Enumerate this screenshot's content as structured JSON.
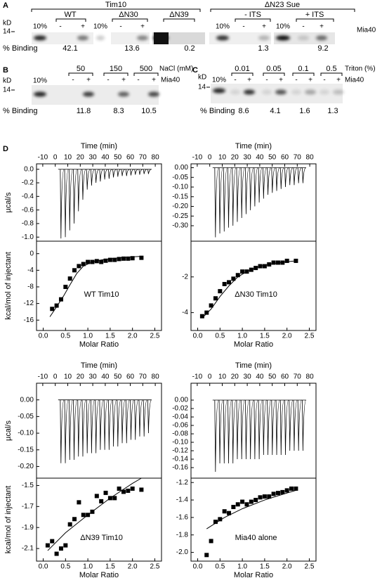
{
  "gels": {
    "a": {
      "label": "A",
      "group1": "Tim10",
      "group2": "ΔN23 Sue",
      "lanes": [
        "WT",
        "ΔN30",
        "ΔN39",
        "- ITS",
        "+ ITS"
      ],
      "kd": "kD",
      "marker": "14",
      "load": "10%",
      "minus": "-",
      "plus": "+",
      "protein": "Mia40",
      "binding_label": "% Binding",
      "binding": [
        42.1,
        13.6,
        0.2,
        1.3,
        9.2
      ]
    },
    "b": {
      "label": "B",
      "conditions": [
        50,
        150,
        500
      ],
      "condition_label": "NaCl (mM)",
      "kd": "kD",
      "marker": "14",
      "load": "10%",
      "minus": "-",
      "plus": "+",
      "protein": "Mia40",
      "binding_label": "% Binding",
      "binding": [
        11.8,
        8.3,
        10.5
      ]
    },
    "c": {
      "label": "C",
      "conditions": [
        0.01,
        0.05,
        0.1,
        0.5
      ],
      "condition_label": "Triton (%)",
      "kd": "kD",
      "marker": "14",
      "load": "10%",
      "minus": "-",
      "plus": "+",
      "protein": "Mia40",
      "binding_label": "% Binding",
      "binding": [
        8.6,
        4.1,
        1.6,
        1.3
      ]
    }
  },
  "panel_d_label": "D",
  "chart_data": [
    {
      "type": "itc",
      "color": "#000000",
      "annotation": "WT Tim10",
      "thermogram": {
        "title": "Time (min)",
        "ylabel": "µcal/s",
        "xlim": [
          -15,
          85
        ],
        "xticks": [
          -10,
          0,
          10,
          20,
          30,
          40,
          50,
          60,
          70,
          80
        ],
        "ylim": [
          -1.06,
          0.08
        ],
        "yticks": [
          {
            "value": 0,
            "label": "0.0"
          },
          -0.2,
          -0.4,
          -0.6,
          -0.8,
          {
            "value": -1,
            "label": "-1.0"
          }
        ],
        "x": [
          4,
          7.5,
          11,
          14.5,
          18,
          21.5,
          25,
          28.5,
          32,
          35.5,
          39,
          42.5,
          46,
          49.5,
          53,
          56.5,
          60,
          63.5,
          67,
          70.5,
          74
        ],
        "values": [
          -1.02,
          -1.0,
          -0.9,
          -0.8,
          -0.62,
          -0.45,
          -0.3,
          -0.24,
          -0.2,
          -0.18,
          -0.15,
          -0.14,
          -0.12,
          -0.11,
          -0.1,
          -0.1,
          -0.09,
          -0.08,
          -0.08,
          -0.07,
          -0.07
        ]
      },
      "isotherm": {
        "xlabel": "Molar Ratio",
        "ylabel": "kcal/mol of injectant",
        "xlim": [
          -0.15,
          2.65
        ],
        "xticks": [
          {
            "value": 0,
            "label": "0.0"
          },
          0.5,
          {
            "value": 1,
            "label": "1.0"
          },
          1.5,
          {
            "value": 2,
            "label": "2.0"
          },
          2.5
        ],
        "ylim": [
          -18.5,
          3
        ],
        "yticks": [
          0,
          -4,
          -8,
          -12,
          -16
        ],
        "x": [
          0.2,
          0.3,
          0.4,
          0.5,
          0.6,
          0.7,
          0.8,
          0.9,
          1.0,
          1.1,
          1.2,
          1.3,
          1.4,
          1.5,
          1.6,
          1.7,
          1.8,
          1.9,
          2.0,
          2.2
        ],
        "values": [
          -13.3,
          -12.5,
          -11,
          -8,
          -6,
          -4,
          -3,
          -2.5,
          -2,
          -2,
          -1.8,
          -2,
          -1.7,
          -1.5,
          -1.5,
          -1.3,
          -1.2,
          -1.2,
          -1.1,
          -1
        ],
        "fit": {
          "x": [
            0.15,
            0.3,
            0.45,
            0.6,
            0.75,
            0.9,
            1.1,
            1.3,
            1.6,
            1.9,
            2.2
          ],
          "values": [
            -15.2,
            -12.8,
            -10.3,
            -7.5,
            -4.8,
            -3.0,
            -2.0,
            -1.5,
            -1.1,
            -0.85,
            -0.65
          ]
        }
      }
    },
    {
      "type": "itc",
      "color": "#000000",
      "annotation": "ΔN30 Tim10",
      "thermogram": {
        "title": "Time (min)",
        "xlim": [
          -15,
          85
        ],
        "xticks": [
          -10,
          0,
          10,
          20,
          30,
          40,
          50,
          60,
          70,
          80
        ],
        "ylim": [
          -0.38,
          0.02
        ],
        "yticks": [
          {
            "value": 0,
            "label": "0.00"
          },
          -0.05,
          {
            "value": -0.1,
            "label": "-0.10"
          },
          -0.15,
          {
            "value": -0.2,
            "label": "-0.20"
          },
          -0.25,
          {
            "value": -0.3,
            "label": "-0.30"
          }
        ],
        "x": [
          4,
          7.5,
          11,
          14.5,
          18,
          21.5,
          25,
          28.5,
          32,
          35.5,
          39,
          42.5,
          46,
          49.5,
          53,
          56.5,
          60,
          63.5,
          67,
          70.5,
          74
        ],
        "values": [
          -0.36,
          -0.34,
          -0.33,
          -0.31,
          -0.3,
          -0.28,
          -0.26,
          -0.24,
          -0.22,
          -0.2,
          -0.18,
          -0.16,
          -0.14,
          -0.13,
          -0.12,
          -0.11,
          -0.1,
          -0.09,
          -0.09,
          -0.08,
          -0.08
        ]
      },
      "isotherm": {
        "xlabel": "Molar Ratio",
        "xlim": [
          -0.15,
          2.65
        ],
        "xticks": [
          {
            "value": 0,
            "label": "0.0"
          },
          0.5,
          {
            "value": 1,
            "label": "1.0"
          },
          1.5,
          {
            "value": 2,
            "label": "2.0"
          },
          2.5
        ],
        "ylim": [
          -5,
          0
        ],
        "yticks": [
          -2,
          -4
        ],
        "x": [
          0.1,
          0.2,
          0.3,
          0.4,
          0.5,
          0.6,
          0.7,
          0.8,
          0.9,
          1.0,
          1.1,
          1.2,
          1.3,
          1.4,
          1.5,
          1.6,
          1.7,
          1.8,
          1.9,
          2.0,
          2.2
        ],
        "values": [
          -4.2,
          -4.0,
          -3.6,
          -3.2,
          -2.8,
          -2.4,
          -2.3,
          -2.1,
          -1.9,
          -1.7,
          -1.7,
          -1.6,
          -1.5,
          -1.4,
          -1.4,
          -1.3,
          -1.2,
          -1.2,
          -1.2,
          -1.1,
          -1.1
        ],
        "fit": {
          "x": [
            0.1,
            0.3,
            0.5,
            0.7,
            0.9,
            1.1,
            1.4,
            1.7,
            2.0,
            2.2
          ],
          "values": [
            -4.3,
            -3.8,
            -3.1,
            -2.5,
            -2.0,
            -1.7,
            -1.4,
            -1.25,
            -1.15,
            -1.1
          ]
        }
      }
    },
    {
      "type": "itc",
      "color": "#000000",
      "annotation": "ΔN39 Tim10",
      "thermogram": {
        "title": "Time (min)",
        "ylabel": "µcal/s",
        "xlim": [
          -15,
          85
        ],
        "xticks": [
          -10,
          0,
          10,
          20,
          30,
          40,
          50,
          60,
          70,
          80
        ],
        "ylim": [
          -0.235,
          0.05
        ],
        "yticks": [
          {
            "value": 0,
            "label": "0.00"
          },
          -0.05,
          {
            "value": -0.1,
            "label": "-0.10"
          },
          -0.15,
          {
            "value": -0.2,
            "label": "-0.20"
          }
        ],
        "x": [
          4,
          7.5,
          11,
          14.5,
          18,
          21.5,
          25,
          28.5,
          32,
          35.5,
          39,
          42.5,
          46,
          49.5,
          53,
          56.5,
          60,
          63.5,
          67,
          70.5,
          74
        ],
        "values": [
          -0.19,
          -0.19,
          -0.18,
          -0.18,
          -0.17,
          -0.17,
          -0.16,
          -0.16,
          -0.16,
          -0.15,
          -0.15,
          -0.15,
          -0.14,
          -0.14,
          -0.13,
          -0.13,
          -0.12,
          -0.12,
          -0.11,
          -0.11,
          -0.1
        ]
      },
      "isotherm": {
        "xlabel": "Molar Ratio",
        "ylabel": "kcal/mol of injectant",
        "xlim": [
          -0.15,
          2.65
        ],
        "xticks": [
          {
            "value": 0,
            "label": "0.0"
          },
          0.5,
          {
            "value": 1,
            "label": "1.0"
          },
          1.5,
          {
            "value": 2,
            "label": "2.0"
          },
          2.5
        ],
        "ylim": [
          -2.22,
          -1.43
        ],
        "yticks": [
          -1.5,
          -1.7,
          -1.9,
          -2.1
        ],
        "x": [
          0.1,
          0.2,
          0.3,
          0.4,
          0.5,
          0.6,
          0.7,
          0.8,
          0.9,
          1.0,
          1.1,
          1.2,
          1.3,
          1.4,
          1.5,
          1.6,
          1.7,
          1.8,
          1.9,
          2.0,
          2.2
        ],
        "values": [
          -2.07,
          -2.03,
          -2.15,
          -2.1,
          -2.07,
          -1.87,
          -1.82,
          -1.66,
          -1.78,
          -1.78,
          -1.75,
          -1.6,
          -1.65,
          -1.57,
          -1.62,
          -1.62,
          -1.53,
          -1.56,
          -1.55,
          -1.53,
          -1.54
        ],
        "fit": {
          "x": [
            0.1,
            0.5,
            1.0,
            1.5,
            2.0,
            2.2
          ],
          "values": [
            -2.12,
            -1.95,
            -1.78,
            -1.62,
            -1.48,
            -1.43
          ]
        }
      }
    },
    {
      "type": "itc",
      "color": "#000000",
      "annotation": "Mia40 alone",
      "thermogram": {
        "title": "Time (min)",
        "xlim": [
          -15,
          85
        ],
        "xticks": [
          -10,
          0,
          10,
          20,
          30,
          40,
          50,
          60,
          70,
          80
        ],
        "ylim": [
          -0.185,
          0.04
        ],
        "yticks": [
          {
            "value": 0,
            "label": "0.00"
          },
          -0.02,
          -0.04,
          -0.06,
          -0.08,
          {
            "value": -0.1,
            "label": "-0.10"
          },
          -0.12,
          -0.14,
          -0.16
        ],
        "x": [
          4,
          7.5,
          11,
          14.5,
          18,
          21.5,
          25,
          28.5,
          32,
          35.5,
          39,
          42.5,
          46,
          49.5,
          53,
          56.5,
          60,
          63.5,
          67,
          70.5,
          74
        ],
        "values": [
          -0.17,
          -0.15,
          -0.15,
          -0.15,
          -0.15,
          -0.14,
          -0.14,
          -0.14,
          -0.14,
          -0.14,
          -0.14,
          -0.13,
          -0.13,
          -0.13,
          -0.13,
          -0.13,
          -0.13,
          -0.12,
          -0.12,
          -0.12,
          -0.12
        ]
      },
      "isotherm": {
        "xlabel": "Molar Ratio",
        "xlim": [
          -0.15,
          2.65
        ],
        "xticks": [
          {
            "value": 0,
            "label": "0.0"
          },
          0.5,
          {
            "value": 1,
            "label": "1.0"
          },
          1.5,
          {
            "value": 2,
            "label": "2.0"
          },
          2.5
        ],
        "ylim": [
          -2.1,
          -1.15
        ],
        "yticks": [
          -1.2,
          -1.4,
          -1.6,
          -1.8,
          {
            "value": -2,
            "label": "-2.0"
          }
        ],
        "x": [
          0.2,
          0.3,
          0.4,
          0.5,
          0.6,
          0.7,
          0.8,
          0.9,
          1.0,
          1.1,
          1.2,
          1.3,
          1.4,
          1.5,
          1.6,
          1.7,
          1.8,
          1.9,
          2.0,
          2.1,
          2.2
        ],
        "values": [
          -2.03,
          -1.87,
          -1.65,
          -1.62,
          -1.53,
          -1.55,
          -1.48,
          -1.45,
          -1.42,
          -1.45,
          -1.42,
          -1.4,
          -1.37,
          -1.36,
          -1.36,
          -1.33,
          -1.32,
          -1.31,
          -1.29,
          -1.27,
          -1.27
        ],
        "fit": {
          "x": [
            0.2,
            0.6,
            1.0,
            1.5,
            2.0,
            2.2
          ],
          "values": [
            -1.73,
            -1.6,
            -1.5,
            -1.4,
            -1.32,
            -1.29
          ]
        }
      }
    }
  ]
}
